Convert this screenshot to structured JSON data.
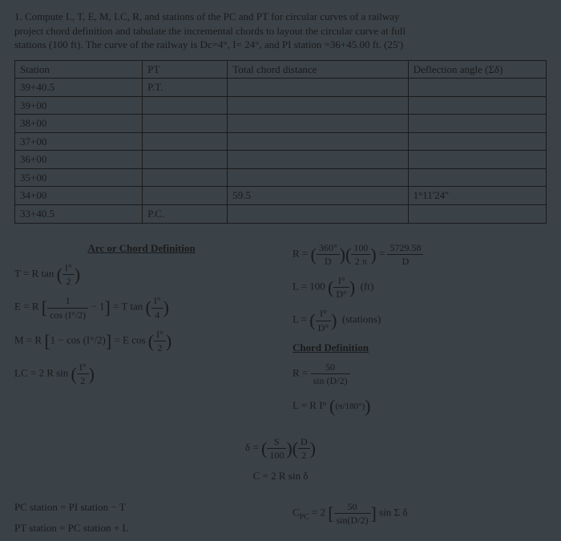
{
  "problem": {
    "number": "1.",
    "text1": "Compute L, T, E, M, LC, R, and stations of the PC and PT for circular curves of a railway",
    "text2": "project chord definition and tabulate the incremental chords to layout the circular curve at full",
    "text3": "stations (100 ft). The curve of the railway is Dc=4°, I= 24°, and PI station =36+45.00 ft. (25')"
  },
  "table": {
    "headers": [
      "Station",
      "PT",
      "Total chord distance",
      "Deflection angle (Σδ)"
    ],
    "rows": [
      [
        "39+40.5",
        "P.T.",
        "",
        ""
      ],
      [
        "39+00",
        "",
        "",
        ""
      ],
      [
        "38+00",
        "",
        "",
        ""
      ],
      [
        "37+00",
        "",
        "",
        ""
      ],
      [
        "36+00",
        "",
        "",
        ""
      ],
      [
        "35+00",
        "",
        "",
        ""
      ],
      [
        "34+00",
        "",
        "59.5",
        "1°11'24''"
      ],
      [
        "33+40.5",
        "P.C.",
        "",
        ""
      ]
    ],
    "col_widths": [
      "24%",
      "16%",
      "34%",
      "26%"
    ]
  },
  "formulas": {
    "arc_heading": "Arc or Chord Definition",
    "chord_heading": "Chord Definition",
    "T": "T = R tan",
    "T_frac_num": "I°",
    "T_frac_den": "2",
    "E_pre": "E = R",
    "E_inner_num": "1",
    "E_inner_den": "cos (I°/2)",
    "E_minus": "− 1",
    "E_eq": "= T tan",
    "E_frac_num": "I°",
    "E_frac_den": "4",
    "M_pre": "M = R",
    "M_inner": "1 − cos (I°/2)",
    "M_eq": "= E cos",
    "M_frac_num": "I°",
    "M_frac_den": "2",
    "LC": "LC = 2 R sin",
    "LC_frac_num": "I°",
    "LC_frac_den": "2",
    "R_arc": "R =",
    "R_arc_a_num": "360°",
    "R_arc_a_den": "D",
    "R_arc_b_num": "100",
    "R_arc_b_den": "2 π",
    "R_arc_eq_num": "5729.58",
    "R_arc_eq_den": "D",
    "L_100": "L = 100",
    "L_frac_num": "I°",
    "L_frac_den": "D°",
    "L_units": "(ft)",
    "L_sta": "L =",
    "L_sta_units": "(stations)",
    "R_chord": "R =",
    "R_chord_num": "50",
    "R_chord_den": "sin (D/2)",
    "L_RI": "L = R I°",
    "L_RI_inner": "(π/180°)",
    "delta": "δ =",
    "delta_a_num": "S",
    "delta_a_den": "100",
    "delta_b_num": "D",
    "delta_b_den": "2",
    "C_eq": "C = 2 R sin δ",
    "PC_line": "PC station = PI station − T",
    "PT_line": "PT station = PC station + L",
    "Cpc": "C",
    "Cpc_sub": "PC",
    "Cpc_eq": "= 2",
    "Cpc_frac_num": "50",
    "Cpc_frac_den": "sin(D/2)",
    "Cpc_tail": "sin Σ δ"
  },
  "colors": {
    "bg": "#3a4248",
    "text": "#1a1a1a",
    "border": "#1a1a1a"
  }
}
